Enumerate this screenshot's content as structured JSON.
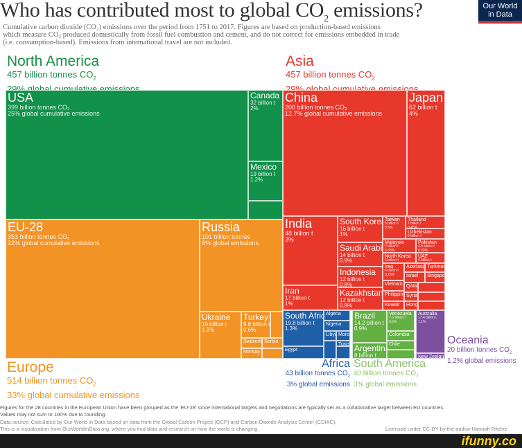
{
  "header": {
    "title_pre": "Who has contributed most to global CO",
    "title_sub": "2",
    "title_post": " emissions?",
    "subtitle": [
      "Cumulative carbon dioxide (CO₂) emissions over the period from 1751 to 2017. Figures are based on production-based emissions",
      "which measure CO₂ produced domestically from fossil fuel combustion and cement, and do not correct for emissions embedded in trade",
      "(i.e. consumption-based). Emissions from international travel are not included."
    ],
    "logo": [
      "Our World",
      "in Data"
    ]
  },
  "colors": {
    "north_america": "#12914a",
    "europe": "#f39325",
    "asia": "#e8372b",
    "africa": "#1f5fa8",
    "south_america": "#62b142",
    "oceania": "#7c4f9f"
  },
  "chart_data": {
    "type": "treemap",
    "unit": "billion tonnes CO2",
    "regions": {
      "north_america": {
        "name": "North America",
        "value": "457 billion tonnes CO",
        "pct": "29% global cumulative emissions"
      },
      "asia": {
        "name": "Asia",
        "value": "457 billion tonnes CO",
        "pct": "29% global cumulative emissions"
      },
      "europe": {
        "name": "Europe",
        "value": "514 billion tonnes CO",
        "pct": "33% global cumulative emissions"
      },
      "africa": {
        "name": "Africa",
        "value": "43 billion tonnes CO",
        "pct": "3% global emissions"
      },
      "south_america": {
        "name": "South America",
        "value": "40 billion tonnes CO",
        "pct": "3% global emissions"
      },
      "oceania": {
        "name": "Oceania",
        "value": "20 billion tonnes CO",
        "pct": "1.2% global emissions"
      }
    },
    "countries": {
      "usa": {
        "n": "USA",
        "v": "399 billion tonnes CO₂",
        "p": "25% global cumulative emissions"
      },
      "canada": {
        "n": "Canada",
        "v": "32 billion t",
        "p": "2%"
      },
      "mexico": {
        "n": "Mexico",
        "v": "19 billion t",
        "p": "1.2%"
      },
      "eu28": {
        "n": "EU-28",
        "v": "353 billion tonnes CO₂",
        "p": "22% global cumulative emissions"
      },
      "russia": {
        "n": "Russia",
        "v": "101 billion tonnes",
        "p": "6% global emissions"
      },
      "ukraine": {
        "n": "Ukraine",
        "v": "19 billion t",
        "p": "1.2%"
      },
      "turkey": {
        "n": "Turkey",
        "v": "9.6 billion t",
        "p": "0.6%"
      },
      "switzerland": {
        "n": "Switzerland",
        "v": "",
        "p": ""
      },
      "serbia": {
        "n": "Serbia",
        "v": "",
        "p": ""
      },
      "norway": {
        "n": "Norway",
        "v": "",
        "p": ""
      },
      "china": {
        "n": "China",
        "v": "200 billion tonnes CO₂",
        "p": "12.7% global cumulative emissions"
      },
      "japan": {
        "n": "Japan",
        "v": "62 billion t",
        "p": "4%"
      },
      "india": {
        "n": "India",
        "v": "48 billion t",
        "p": "3%"
      },
      "iran": {
        "n": "Iran",
        "v": "17 billion t",
        "p": "1%"
      },
      "south_korea": {
        "n": "South Korea",
        "v": "16 billion t",
        "p": "1%"
      },
      "saudi_arabia": {
        "n": "Saudi Arabia",
        "v": "14 billion t",
        "p": "0.9%"
      },
      "indonesia": {
        "n": "Indonesia",
        "v": "12 billion t",
        "p": "0.8%"
      },
      "kazakhstan": {
        "n": "Kazakhstan",
        "v": "12 billion t",
        "p": "0.8%"
      },
      "taiwan": {
        "n": "Taiwan",
        "v": "8 billion t",
        "p": "0.5%"
      },
      "thailand": {
        "n": "Thailand",
        "v": "7 billion t",
        "p": "0.45%"
      },
      "uzbekistan": {
        "n": "Uzbekistan",
        "v": "6 billion t",
        "p": "0.4%"
      },
      "malaysia": {
        "n": "Malaysia",
        "v": "5 billion t",
        "p": "0.33%"
      },
      "pakistan": {
        "n": "Pakistan",
        "v": "4.4 billion t",
        "p": "0.28%"
      },
      "north_korea": {
        "n": "North Korea",
        "v": "5 billion t",
        "p": "0.32%"
      },
      "uae": {
        "n": "UAE",
        "v": "4 billion t",
        "p": "0.28%"
      },
      "iraq": {
        "n": "Iraq",
        "v": "4 billion t",
        "p": "0.25%"
      },
      "vietnam": {
        "n": "Vietnam",
        "v": "",
        "p": ""
      },
      "philippines": {
        "n": "Philippines",
        "v": "",
        "p": ""
      },
      "kuwait": {
        "n": "Kuwait",
        "v": "",
        "p": ""
      },
      "azerbaijan": {
        "n": "Azerbaijan",
        "v": "",
        "p": ""
      },
      "turkmenistan": {
        "n": "Turkmenistan",
        "v": "",
        "p": ""
      },
      "israel": {
        "n": "Israel",
        "v": "",
        "p": ""
      },
      "singapore": {
        "n": "Singapore",
        "v": "",
        "p": ""
      },
      "qatar": {
        "n": "Qatar",
        "v": "",
        "p": ""
      },
      "syria": {
        "n": "Syria",
        "v": "",
        "p": ""
      },
      "hong_kong": {
        "n": "Hong Kong",
        "v": "",
        "p": ""
      },
      "south_africa": {
        "n": "South Africa",
        "v": "19.8 billion t",
        "p": "1.3%"
      },
      "algeria": {
        "n": "Algeria",
        "v": "",
        "p": ""
      },
      "nigeria": {
        "n": "Nigeria",
        "v": "",
        "p": ""
      },
      "libya": {
        "n": "Libya",
        "v": "",
        "p": ""
      },
      "morocco": {
        "n": "Morocco",
        "v": "",
        "p": ""
      },
      "tunisia": {
        "n": "Tunisia",
        "v": "",
        "p": ""
      },
      "egypt": {
        "n": "Egypt",
        "v": "",
        "p": ""
      },
      "brazil": {
        "n": "Brazil",
        "v": "14.2 billion t",
        "p": "0.9%"
      },
      "argentina": {
        "n": "Argentina",
        "v": "8 billion t",
        "p": "0.5%"
      },
      "venezuela": {
        "n": "Venezuela",
        "v": "7.6 billion t",
        "p": "0.5%"
      },
      "colombia": {
        "n": "Colombia",
        "v": "",
        "p": ""
      },
      "chile": {
        "n": "Chile",
        "v": "",
        "p": ""
      },
      "australia": {
        "n": "Australia",
        "v": "17.4 billion t",
        "p": "1.1%"
      },
      "new_zealand": {
        "n": "New Zealand",
        "v": "",
        "p": ""
      }
    }
  },
  "footer": [
    "Figures for the 28 countries in the European Union have been grouped as the 'EU-28' since international targets and negotiations are typically set as a collaborative target between EU countries.",
    "Values may not sum to 100% due to rounding.",
    "Data source: Calculated by Our World in Data based on data from the Global Carbon Project (GCP) and Carbon Dioxide Analysis Center (CDIAC).",
    "This is a visualization from OurWorldInData.org, where you find data and research on how the world is changing.",
    "Licensed under CC-BY by the author Hannah Ritchie"
  ],
  "watermark": "ifunny.co"
}
